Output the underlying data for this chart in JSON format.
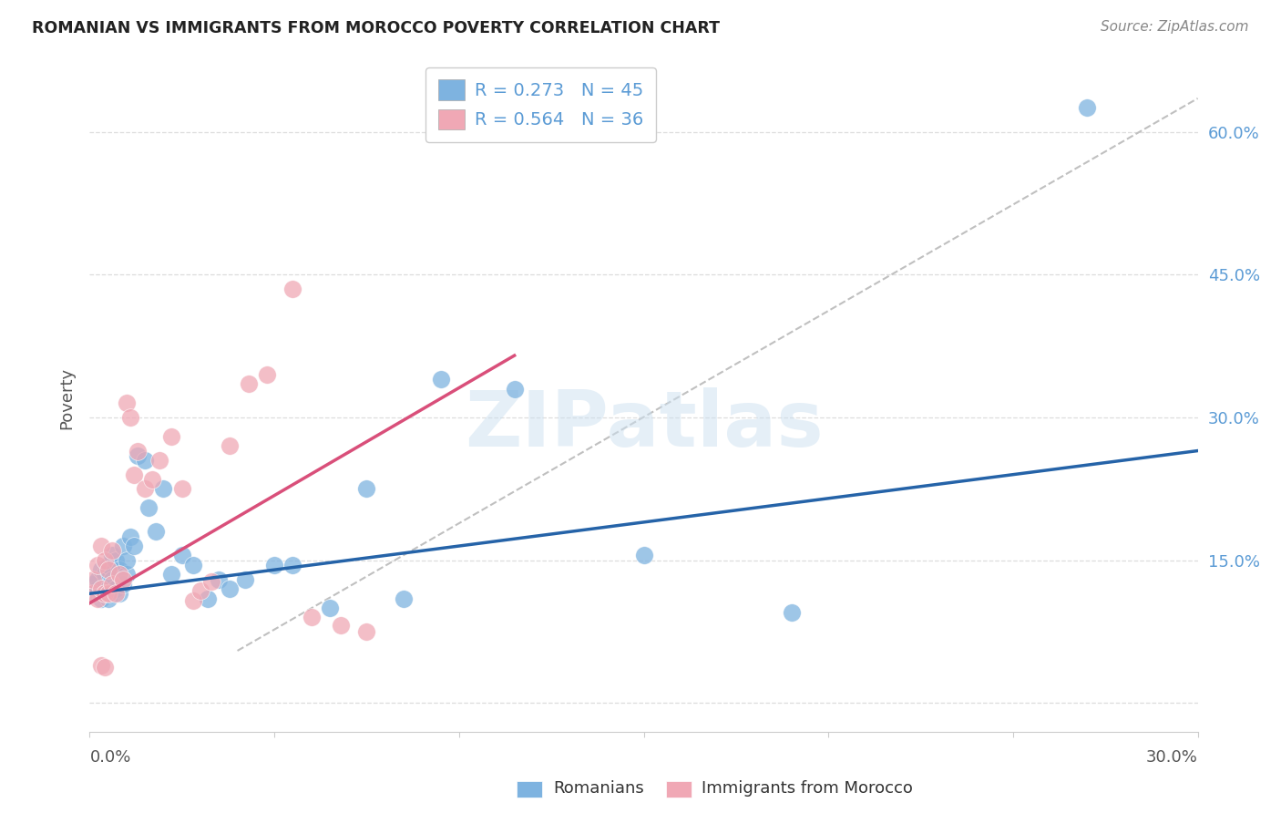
{
  "title": "ROMANIAN VS IMMIGRANTS FROM MOROCCO POVERTY CORRELATION CHART",
  "source": "Source: ZipAtlas.com",
  "ylabel": "Poverty",
  "yticks": [
    0.0,
    0.15,
    0.3,
    0.45,
    0.6
  ],
  "ytick_labels": [
    "",
    "15.0%",
    "30.0%",
    "45.0%",
    "60.0%"
  ],
  "xlim": [
    0.0,
    0.3
  ],
  "ylim": [
    -0.03,
    0.67
  ],
  "legend_blue_label": "R = 0.273   N = 45",
  "legend_pink_label": "R = 0.564   N = 36",
  "blue_color": "#7eb3e0",
  "pink_color": "#f0a8b5",
  "blue_line_color": "#2563a8",
  "pink_line_color": "#d94f7a",
  "watermark": "ZIPatlas",
  "blue_line_x": [
    0.0,
    0.3
  ],
  "blue_line_y": [
    0.115,
    0.265
  ],
  "pink_line_x": [
    0.0,
    0.115
  ],
  "pink_line_y": [
    0.105,
    0.365
  ],
  "diag_line_x": [
    0.04,
    0.3
  ],
  "diag_line_y": [
    0.055,
    0.635
  ],
  "blue_scatter_x": [
    0.001,
    0.001,
    0.002,
    0.002,
    0.003,
    0.003,
    0.004,
    0.004,
    0.005,
    0.005,
    0.005,
    0.006,
    0.006,
    0.007,
    0.007,
    0.008,
    0.008,
    0.009,
    0.009,
    0.01,
    0.01,
    0.011,
    0.012,
    0.013,
    0.015,
    0.016,
    0.018,
    0.02,
    0.022,
    0.025,
    0.028,
    0.032,
    0.035,
    0.038,
    0.042,
    0.05,
    0.055,
    0.065,
    0.075,
    0.085,
    0.095,
    0.115,
    0.15,
    0.19,
    0.27
  ],
  "blue_scatter_y": [
    0.115,
    0.125,
    0.12,
    0.13,
    0.11,
    0.14,
    0.115,
    0.135,
    0.11,
    0.145,
    0.12,
    0.13,
    0.155,
    0.12,
    0.15,
    0.115,
    0.14,
    0.125,
    0.165,
    0.135,
    0.15,
    0.175,
    0.165,
    0.26,
    0.255,
    0.205,
    0.18,
    0.225,
    0.135,
    0.155,
    0.145,
    0.11,
    0.13,
    0.12,
    0.13,
    0.145,
    0.145,
    0.1,
    0.225,
    0.11,
    0.34,
    0.33,
    0.155,
    0.095,
    0.625
  ],
  "pink_scatter_x": [
    0.001,
    0.001,
    0.002,
    0.002,
    0.003,
    0.003,
    0.004,
    0.004,
    0.005,
    0.005,
    0.006,
    0.006,
    0.007,
    0.008,
    0.009,
    0.01,
    0.011,
    0.012,
    0.013,
    0.015,
    0.017,
    0.019,
    0.022,
    0.025,
    0.028,
    0.03,
    0.033,
    0.038,
    0.043,
    0.048,
    0.055,
    0.06,
    0.068,
    0.075,
    0.003,
    0.004
  ],
  "pink_scatter_y": [
    0.115,
    0.13,
    0.11,
    0.145,
    0.12,
    0.165,
    0.115,
    0.15,
    0.14,
    0.115,
    0.16,
    0.125,
    0.115,
    0.135,
    0.13,
    0.315,
    0.3,
    0.24,
    0.265,
    0.225,
    0.235,
    0.255,
    0.28,
    0.225,
    0.108,
    0.118,
    0.128,
    0.27,
    0.335,
    0.345,
    0.435,
    0.09,
    0.082,
    0.075,
    0.04,
    0.038
  ]
}
